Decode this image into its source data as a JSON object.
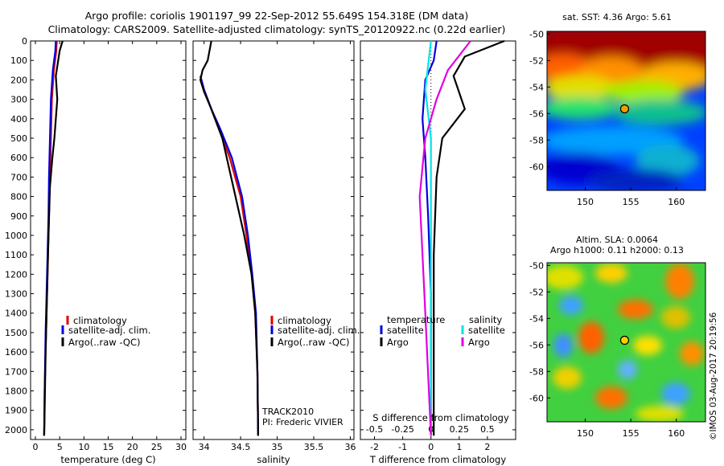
{
  "header": {
    "title_line1": "Argo profile: coriolis 1901197_99 22-Sep-2012 55.649S 154.318E (DM data)",
    "title_line2": "Climatology: CARS2009. Satellite-adjusted climatology: synTS_20120922.nc (0.22d earlier)"
  },
  "footer": {
    "credit": "©IMOS 03-Aug-2017 20:19:56",
    "track": "TRACK2010",
    "pi": "PI: Frederic VIVIER"
  },
  "colors": {
    "climatology": "#e00000",
    "satellite": "#0000e0",
    "argo": "#000000",
    "sal_satellite": "#00e5e5",
    "sal_argo": "#e000e0"
  },
  "chart_data": [
    {
      "type": "line",
      "panel": "temperature",
      "xlabel": "temperature (deg C)",
      "ylabel": "",
      "xlim": [
        -1,
        31
      ],
      "ylim": [
        2050,
        0
      ],
      "xticks": [
        0,
        5,
        10,
        15,
        20,
        25,
        30
      ],
      "yticks": [
        0,
        100,
        200,
        300,
        400,
        500,
        600,
        700,
        800,
        900,
        1000,
        1100,
        1200,
        1300,
        1400,
        1500,
        1600,
        1700,
        1800,
        1900,
        2000
      ],
      "legend": [
        "climatology",
        "satellite-adj. clim.",
        "Argo(..raw -QC)"
      ],
      "series": [
        {
          "name": "climatology",
          "color": "#e00000",
          "x": [
            4.4,
            4.3,
            3.8,
            3.4,
            3.2,
            3.0,
            2.8,
            2.6,
            2.4,
            2.2,
            1.9,
            1.8
          ],
          "y": [
            0,
            50,
            150,
            300,
            500,
            700,
            900,
            1100,
            1300,
            1500,
            1800,
            2030
          ]
        },
        {
          "name": "satellite-adj. clim.",
          "color": "#0000e0",
          "x": [
            4.2,
            4.1,
            3.6,
            3.2,
            3.0,
            2.8,
            2.7,
            2.5,
            2.3,
            2.1,
            1.9,
            1.8
          ],
          "y": [
            0,
            50,
            150,
            300,
            500,
            700,
            900,
            1100,
            1300,
            1500,
            1800,
            2030
          ]
        },
        {
          "name": "Argo(..raw -QC)",
          "color": "#000000",
          "x": [
            5.6,
            5.0,
            4.2,
            4.5,
            3.9,
            3.5,
            3.0,
            2.7,
            2.5,
            2.3,
            2.1,
            1.9,
            1.8
          ],
          "y": [
            0,
            50,
            180,
            300,
            500,
            600,
            750,
            1000,
            1200,
            1400,
            1600,
            1900,
            2030
          ]
        }
      ]
    },
    {
      "type": "line",
      "panel": "salinity",
      "xlabel": "salinity",
      "ylabel": "",
      "xlim": [
        33.85,
        36.05
      ],
      "ylim": [
        2050,
        0
      ],
      "xticks": [
        34,
        34.5,
        35,
        35.5,
        36
      ],
      "xticklabels": [
        "34",
        "34.5",
        "35",
        "35.5",
        "36"
      ],
      "legend": [
        "climatology",
        "satellite-adj. clim.",
        "Argo(..raw -QC)"
      ],
      "series": [
        {
          "name": "climatology",
          "color": "#e00000",
          "x": [
            33.95,
            34.0,
            34.1,
            34.2,
            34.35,
            34.5,
            34.58,
            34.65,
            34.7,
            34.73,
            34.74
          ],
          "y": [
            180,
            250,
            350,
            450,
            600,
            800,
            1000,
            1200,
            1400,
            1700,
            2030
          ]
        },
        {
          "name": "satellite-adj. clim.",
          "color": "#0000e0",
          "x": [
            33.95,
            34.0,
            34.1,
            34.22,
            34.38,
            34.52,
            34.6,
            34.66,
            34.71,
            34.73,
            34.74
          ],
          "y": [
            180,
            250,
            350,
            450,
            600,
            800,
            1000,
            1200,
            1400,
            1700,
            2030
          ]
        },
        {
          "name": "Argo(..raw -QC)",
          "color": "#000000",
          "x": [
            34.1,
            34.05,
            33.98,
            33.95,
            34.0,
            34.1,
            34.25,
            34.4,
            34.55,
            34.65,
            34.7,
            34.73,
            34.74
          ],
          "y": [
            0,
            100,
            150,
            200,
            260,
            350,
            500,
            750,
            1000,
            1200,
            1400,
            1700,
            2030
          ]
        }
      ]
    },
    {
      "type": "line",
      "panel": "difference",
      "xlabel": "T difference from climatology",
      "top_xlabel": "S difference from climatology",
      "xlim": [
        -2.5,
        3.0
      ],
      "ylim": [
        2050,
        0
      ],
      "xticks": [
        -2,
        -1,
        0,
        1,
        2
      ],
      "top_xticks": [
        -0.5,
        -0.25,
        0,
        0.25,
        0.5
      ],
      "legend_temperature": [
        "temperature",
        "satellite",
        "Argo"
      ],
      "legend_salinity": [
        "salinity",
        "satellite",
        "Argo"
      ],
      "series": [
        {
          "name": "satellite",
          "group": "temperature",
          "color": "#0000e0",
          "x": [
            0.2,
            0.1,
            -0.2,
            -0.3,
            -0.2,
            -0.1,
            0.0,
            0.0
          ],
          "y": [
            0,
            100,
            200,
            400,
            600,
            900,
            1300,
            2030
          ]
        },
        {
          "name": "Argo",
          "group": "temperature",
          "color": "#000000",
          "x": [
            2.6,
            1.2,
            0.8,
            1.2,
            0.4,
            0.2,
            0.1,
            0.1
          ],
          "y": [
            0,
            80,
            180,
            350,
            500,
            700,
            1100,
            2030
          ]
        },
        {
          "name": "satellite",
          "group": "salinity",
          "color": "#00e5e5",
          "x": [
            0.0,
            -0.05,
            0.0,
            0.0,
            0.0
          ],
          "y": [
            0,
            250,
            500,
            1000,
            2030
          ]
        },
        {
          "name": "Argo",
          "group": "salinity",
          "color": "#e000e0",
          "x": [
            0.35,
            0.15,
            0.05,
            -0.05,
            -0.1,
            -0.05,
            0.0
          ],
          "y": [
            0,
            150,
            300,
            500,
            800,
            1400,
            2030
          ]
        }
      ]
    },
    {
      "type": "heatmap",
      "panel": "sst_map",
      "title": "sat. SST: 4.36 Argo: 5.61",
      "xlim": [
        145.8,
        163.2
      ],
      "ylim": [
        -61.8,
        -49.8
      ],
      "xticks": [
        150,
        155,
        160
      ],
      "yticks": [
        -50,
        -52,
        -54,
        -56,
        -58,
        -60
      ],
      "marker": {
        "lon": 154.318,
        "lat": -55.649
      }
    },
    {
      "type": "heatmap",
      "panel": "sla_map",
      "title": "Altim. SLA: 0.0064",
      "subtitle": "Argo h1000: 0.11 h2000: 0.13",
      "xlim": [
        145.8,
        163.2
      ],
      "ylim": [
        -61.8,
        -49.8
      ],
      "xticks": [
        150,
        155,
        160
      ],
      "yticks": [
        -50,
        -52,
        -54,
        -56,
        -58,
        -60
      ],
      "marker": {
        "lon": 154.318,
        "lat": -55.649
      }
    }
  ]
}
